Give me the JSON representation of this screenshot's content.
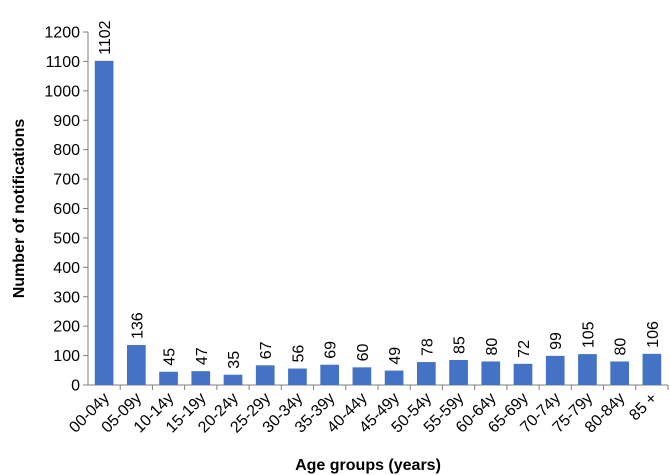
{
  "chart_data": {
    "type": "bar",
    "title": "",
    "xlabel": "Age groups (years)",
    "ylabel": "Number of notifications",
    "categories": [
      "00-04y",
      "05-09y",
      "10-14y",
      "15-19y",
      "20-24y",
      "25-29y",
      "30-34y",
      "35-39y",
      "40-44y",
      "45-49y",
      "50-54y",
      "55-59y",
      "60-64y",
      "65-69y",
      "70-74y",
      "75-79y",
      "80-84y",
      "85 +"
    ],
    "values": [
      1102,
      136,
      45,
      47,
      35,
      67,
      56,
      69,
      60,
      49,
      78,
      85,
      80,
      72,
      99,
      105,
      80,
      106
    ],
    "ylim": [
      0,
      1200
    ],
    "yticks": [
      0,
      100,
      200,
      300,
      400,
      500,
      600,
      700,
      800,
      900,
      1000,
      1100,
      1200
    ],
    "grid": false,
    "bar_color": "#4472C4",
    "data_labels": true
  }
}
